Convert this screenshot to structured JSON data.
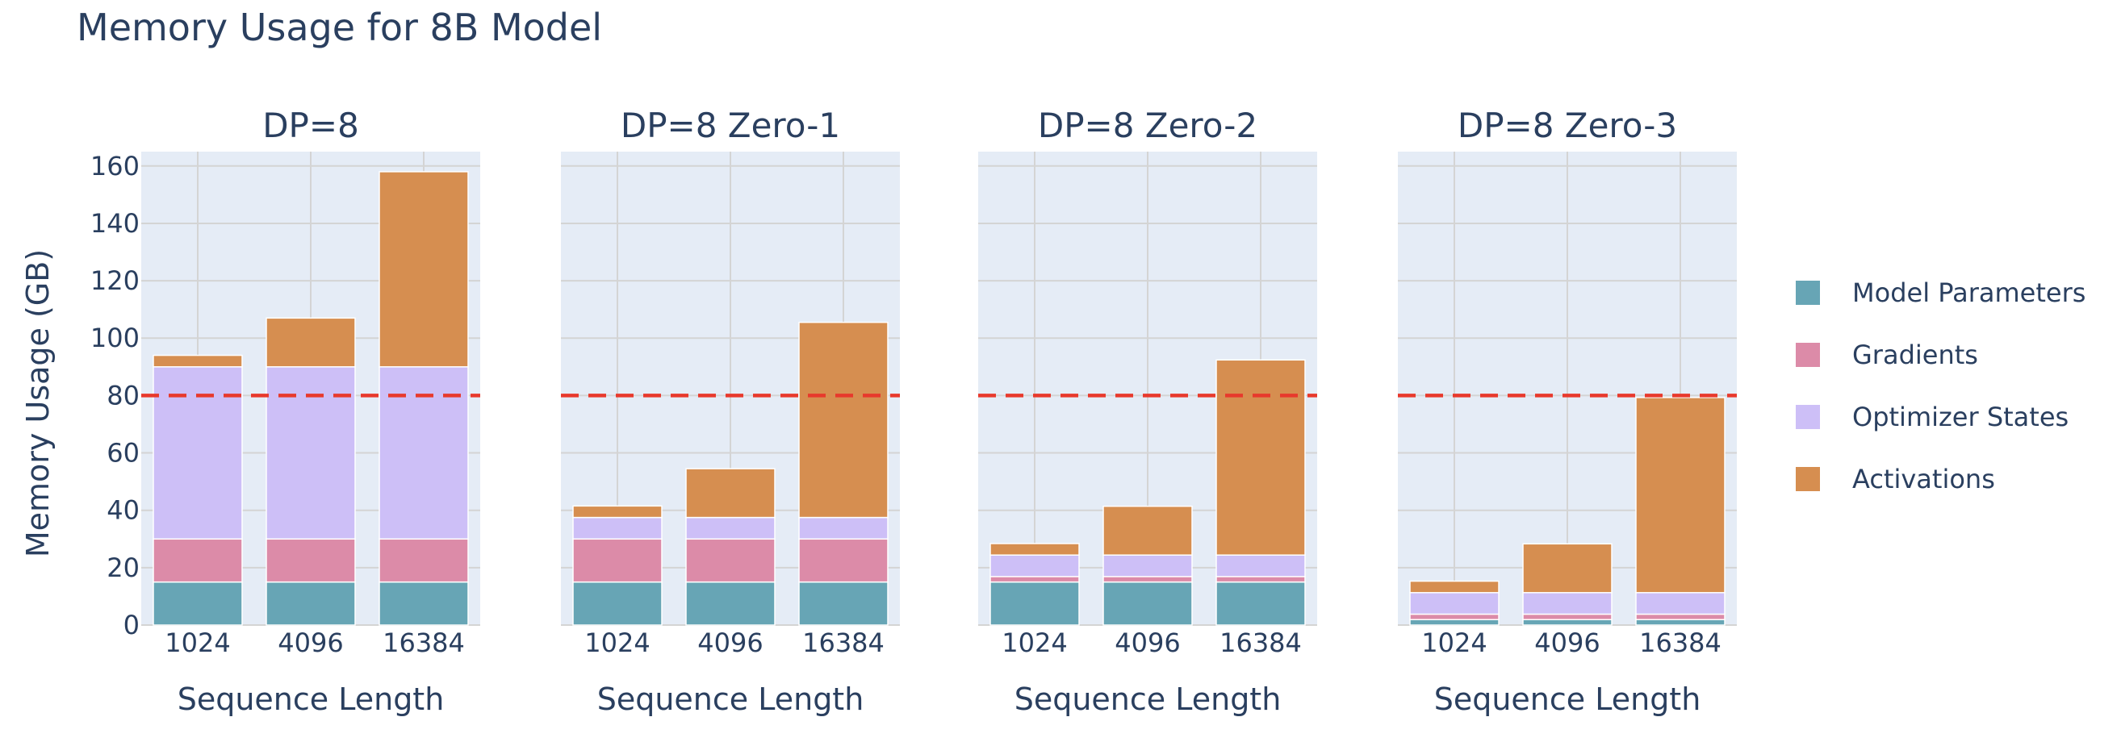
{
  "chart_data": {
    "type": "bar",
    "stacked": true,
    "title": "Memory Usage for 8B Model",
    "ylabel": "Memory Usage (GB)",
    "xlabel": "Sequence Length",
    "ylim": [
      0,
      165
    ],
    "yticks": [
      0,
      20,
      40,
      60,
      80,
      100,
      120,
      140,
      160
    ],
    "categories": [
      "1024",
      "4096",
      "16384"
    ],
    "threshold": {
      "value": 80,
      "color": "#e8392c",
      "style": "dashed"
    },
    "legend_position": "right",
    "grid": true,
    "series_meta": [
      {
        "name": "Model Parameters",
        "color": "#67a5b5"
      },
      {
        "name": "Gradients",
        "color": "#dc8ba8"
      },
      {
        "name": "Optimizer States",
        "color": "#cdbff7"
      },
      {
        "name": "Activations",
        "color": "#d68e50"
      }
    ],
    "panels": [
      {
        "title": "DP=8",
        "series": [
          {
            "name": "Model Parameters",
            "values": [
              15,
              15,
              15
            ]
          },
          {
            "name": "Gradients",
            "values": [
              15,
              15,
              15
            ]
          },
          {
            "name": "Optimizer States",
            "values": [
              60,
              60,
              60
            ]
          },
          {
            "name": "Activations",
            "values": [
              4,
              17,
              68
            ]
          }
        ]
      },
      {
        "title": "DP=8 Zero-1",
        "series": [
          {
            "name": "Model Parameters",
            "values": [
              15,
              15,
              15
            ]
          },
          {
            "name": "Gradients",
            "values": [
              15,
              15,
              15
            ]
          },
          {
            "name": "Optimizer States",
            "values": [
              7.5,
              7.5,
              7.5
            ]
          },
          {
            "name": "Activations",
            "values": [
              4,
              17,
              68
            ]
          }
        ]
      },
      {
        "title": "DP=8 Zero-2",
        "series": [
          {
            "name": "Model Parameters",
            "values": [
              15,
              15,
              15
            ]
          },
          {
            "name": "Gradients",
            "values": [
              1.9,
              1.9,
              1.9
            ]
          },
          {
            "name": "Optimizer States",
            "values": [
              7.5,
              7.5,
              7.5
            ]
          },
          {
            "name": "Activations",
            "values": [
              4,
              17,
              68
            ]
          }
        ]
      },
      {
        "title": "DP=8 Zero-3",
        "series": [
          {
            "name": "Model Parameters",
            "values": [
              1.9,
              1.9,
              1.9
            ]
          },
          {
            "name": "Gradients",
            "values": [
              1.9,
              1.9,
              1.9
            ]
          },
          {
            "name": "Optimizer States",
            "values": [
              7.5,
              7.5,
              7.5
            ]
          },
          {
            "name": "Activations",
            "values": [
              4,
              17,
              68
            ]
          }
        ]
      }
    ]
  }
}
